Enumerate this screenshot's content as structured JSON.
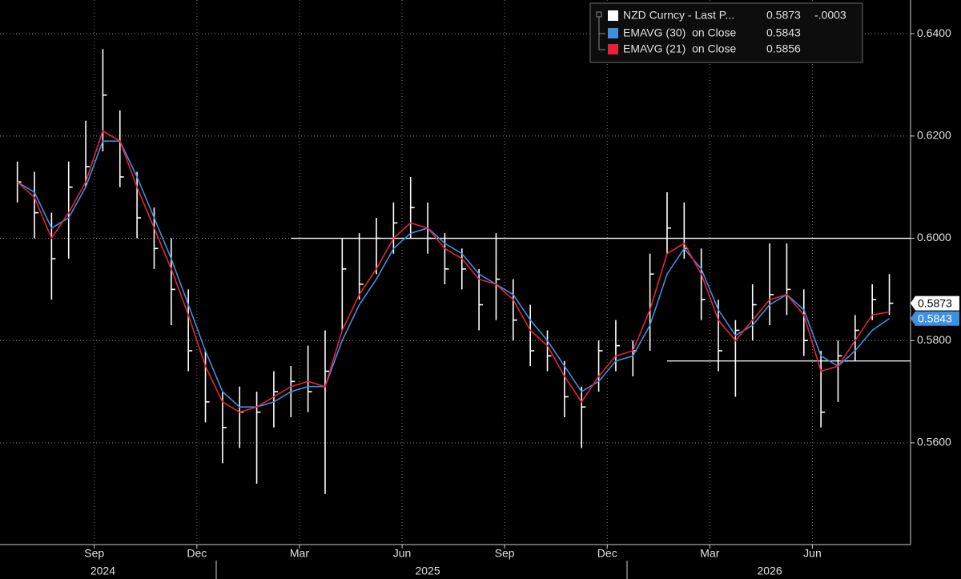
{
  "chart_data": {
    "type": "financial",
    "categories": [
      null,
      null,
      null,
      null,
      "Sep",
      null,
      null,
      null,
      null,
      null,
      "Dec",
      null,
      null,
      null,
      null,
      null,
      "Mar",
      null,
      null,
      null,
      null,
      null,
      "Jun",
      null,
      null,
      null,
      null,
      null,
      "Sep",
      null,
      null,
      null,
      null,
      null,
      "Dec",
      null,
      null,
      null,
      null,
      null,
      "Mar",
      null,
      null,
      null,
      null,
      null,
      "Jun",
      null,
      null,
      null,
      null,
      null
    ],
    "year_categories": [
      null,
      null,
      null,
      null,
      null,
      "2024",
      null,
      null,
      null,
      null,
      null,
      null,
      null,
      null,
      null,
      null,
      null,
      null,
      null,
      null,
      null,
      null,
      null,
      null,
      "2025",
      null,
      null,
      null,
      null,
      null,
      null,
      null,
      null,
      null,
      null,
      null,
      null,
      null,
      null,
      null,
      null,
      null,
      null,
      null,
      "2026",
      null,
      null,
      null,
      null,
      null,
      null,
      null
    ],
    "ylim": [
      0.5401,
      0.6466
    ],
    "yticks": [
      {
        "value": 0.56,
        "label": "0.5600"
      },
      {
        "value": 0.58,
        "label": "0.5800"
      },
      {
        "value": 0.6,
        "label": "0.6000"
      },
      {
        "value": 0.62,
        "label": "0.6200"
      },
      {
        "value": 0.64,
        "label": "0.6400"
      }
    ],
    "grid": true,
    "legend": "top-right",
    "series": [
      {
        "name": "NZD Curncy - Last P...",
        "type": "hlc",
        "color": "#ffffff",
        "tag": true,
        "last": 0.5873,
        "change": {
          "value": -0.0003,
          "label": "-.0003"
        },
        "high": [
          0.615,
          0.613,
          0.605,
          0.615,
          0.623,
          0.637,
          0.625,
          0.613,
          0.606,
          0.6,
          0.59,
          0.578,
          0.57,
          0.571,
          0.57,
          0.574,
          0.575,
          0.579,
          0.582,
          0.6,
          0.601,
          0.604,
          0.607,
          0.612,
          0.607,
          0.601,
          0.598,
          0.594,
          0.601,
          0.592,
          0.587,
          0.582,
          0.576,
          0.571,
          0.58,
          0.584,
          0.58,
          0.597,
          0.609,
          0.607,
          0.598,
          0.588,
          0.584,
          0.591,
          0.599,
          0.599,
          0.59,
          0.578,
          0.58,
          0.585,
          0.591,
          0.593
        ],
        "low": [
          0.607,
          0.6,
          0.588,
          0.596,
          0.61,
          0.617,
          0.61,
          0.6,
          0.594,
          0.583,
          0.574,
          0.564,
          0.556,
          0.559,
          0.552,
          0.563,
          0.565,
          0.566,
          0.55,
          0.582,
          0.588,
          0.593,
          0.597,
          0.6,
          0.597,
          0.591,
          0.59,
          0.582,
          0.584,
          0.58,
          0.575,
          0.574,
          0.565,
          0.559,
          0.57,
          0.574,
          0.573,
          0.578,
          0.597,
          0.596,
          0.584,
          0.574,
          0.569,
          0.58,
          0.583,
          0.585,
          0.577,
          0.563,
          0.568,
          0.576,
          0.584,
          0.585
        ],
        "values": [
          0.611,
          0.605,
          0.596,
          0.61,
          0.614,
          0.628,
          0.612,
          0.604,
          0.598,
          0.59,
          0.578,
          0.568,
          0.563,
          0.566,
          0.566,
          0.57,
          0.572,
          0.57,
          0.574,
          0.594,
          0.591,
          0.6,
          0.603,
          0.606,
          0.6,
          0.594,
          0.594,
          0.587,
          0.592,
          0.584,
          0.578,
          0.577,
          0.569,
          0.567,
          0.578,
          0.579,
          0.578,
          0.593,
          0.602,
          0.598,
          0.588,
          0.578,
          0.582,
          0.587,
          0.589,
          0.59,
          0.58,
          0.566,
          0.577,
          0.582,
          0.588,
          0.5873
        ]
      },
      {
        "name": "EMAVG (30)  on Close",
        "type": "line",
        "color": "#3d8fe0",
        "tag": true,
        "last": 0.5843,
        "values": [
          0.611,
          0.609,
          0.602,
          0.604,
          0.61,
          0.619,
          0.619,
          0.612,
          0.604,
          0.596,
          0.587,
          0.578,
          0.57,
          0.567,
          0.567,
          0.568,
          0.57,
          0.571,
          0.571,
          0.58,
          0.587,
          0.592,
          0.598,
          0.601,
          0.602,
          0.599,
          0.597,
          0.593,
          0.591,
          0.589,
          0.584,
          0.58,
          0.575,
          0.57,
          0.572,
          0.576,
          0.577,
          0.583,
          0.593,
          0.598,
          0.594,
          0.586,
          0.581,
          0.583,
          0.587,
          0.589,
          0.586,
          0.577,
          0.575,
          0.578,
          0.582,
          0.5843
        ]
      },
      {
        "name": "EMAVG (21)  on Close",
        "type": "line",
        "color": "#e8213a",
        "tag": false,
        "last": 0.5856,
        "values": [
          0.611,
          0.608,
          0.6,
          0.605,
          0.611,
          0.621,
          0.619,
          0.61,
          0.602,
          0.594,
          0.585,
          0.575,
          0.568,
          0.566,
          0.567,
          0.569,
          0.571,
          0.572,
          0.571,
          0.582,
          0.589,
          0.594,
          0.6,
          0.603,
          0.602,
          0.598,
          0.596,
          0.592,
          0.591,
          0.588,
          0.582,
          0.579,
          0.573,
          0.568,
          0.573,
          0.577,
          0.578,
          0.586,
          0.597,
          0.599,
          0.593,
          0.584,
          0.58,
          0.584,
          0.588,
          0.589,
          0.585,
          0.574,
          0.575,
          0.58,
          0.585,
          0.5856
        ]
      }
    ],
    "hlines": [
      {
        "value": 0.6,
        "from": 16
      },
      {
        "value": 0.576,
        "from": 38
      }
    ]
  }
}
